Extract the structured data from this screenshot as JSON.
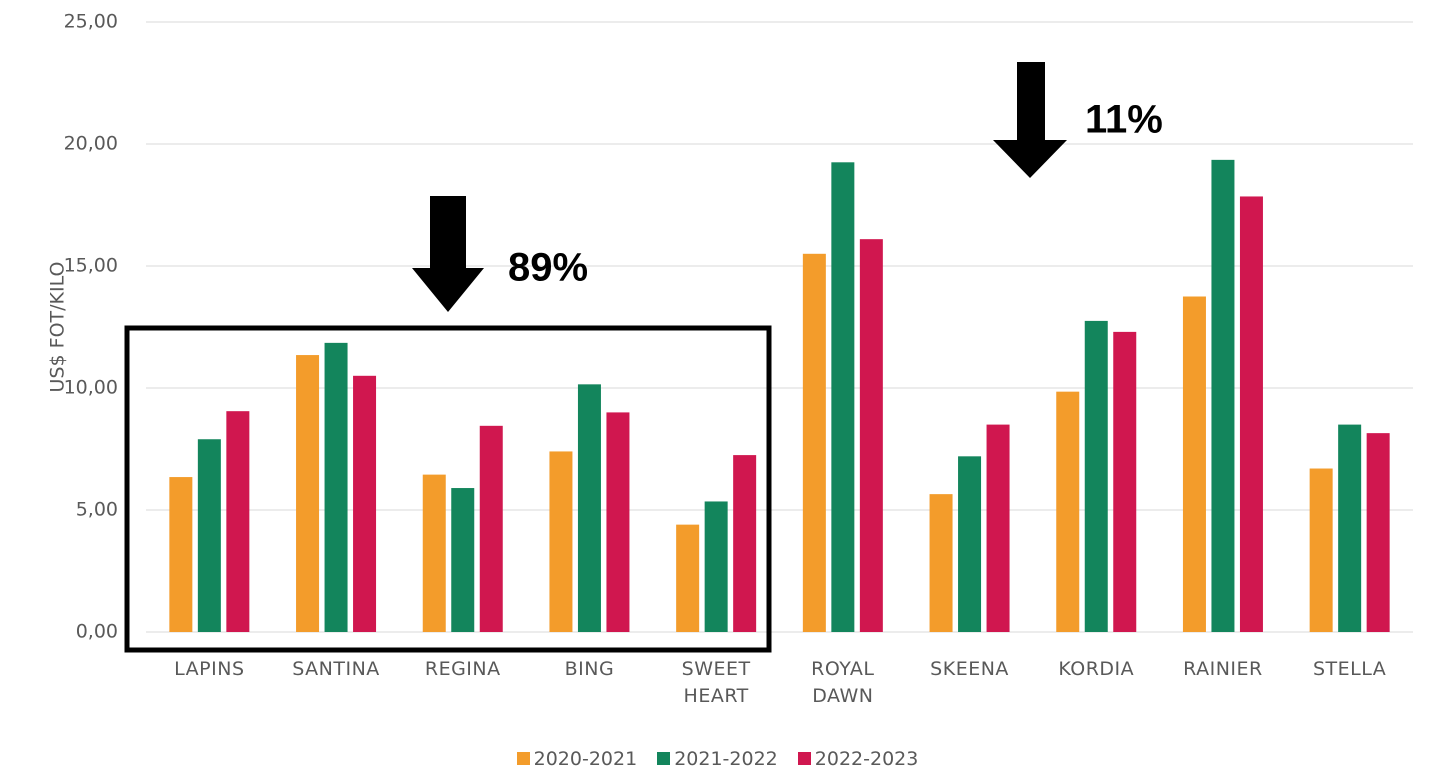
{
  "chart_data": {
    "type": "bar",
    "y_label": "US$ FOT/KILO",
    "categories": [
      "LAPINS",
      "SANTINA",
      "REGINA",
      "BING",
      "SWEET HEART",
      "ROYAL DAWN",
      "SKEENA",
      "KORDIA",
      "RAINIER",
      "STELLA"
    ],
    "series": [
      {
        "name": "2020-2021",
        "color": "#f39c2b",
        "values": [
          6.35,
          11.35,
          6.45,
          7.4,
          4.4,
          15.5,
          5.65,
          9.85,
          13.75,
          6.7
        ]
      },
      {
        "name": "2021-2022",
        "color": "#13855c",
        "values": [
          7.9,
          11.85,
          5.9,
          10.15,
          5.35,
          19.25,
          7.2,
          12.75,
          19.35,
          8.5
        ]
      },
      {
        "name": "2022-2023",
        "color": "#d0174f",
        "values": [
          9.05,
          10.5,
          8.45,
          9.0,
          7.25,
          16.1,
          8.5,
          12.3,
          17.85,
          8.15
        ]
      }
    ],
    "ylim": [
      0,
      25
    ],
    "yticks": [
      {
        "value": 0,
        "label": "0,00"
      },
      {
        "value": 5,
        "label": "5,00"
      },
      {
        "value": 10,
        "label": "10,00"
      },
      {
        "value": 15,
        "label": "15,00"
      },
      {
        "value": 20,
        "label": "20,00"
      },
      {
        "value": 25,
        "label": "25,00"
      }
    ],
    "grid": true,
    "annotations": [
      "89%",
      "11%"
    ]
  }
}
